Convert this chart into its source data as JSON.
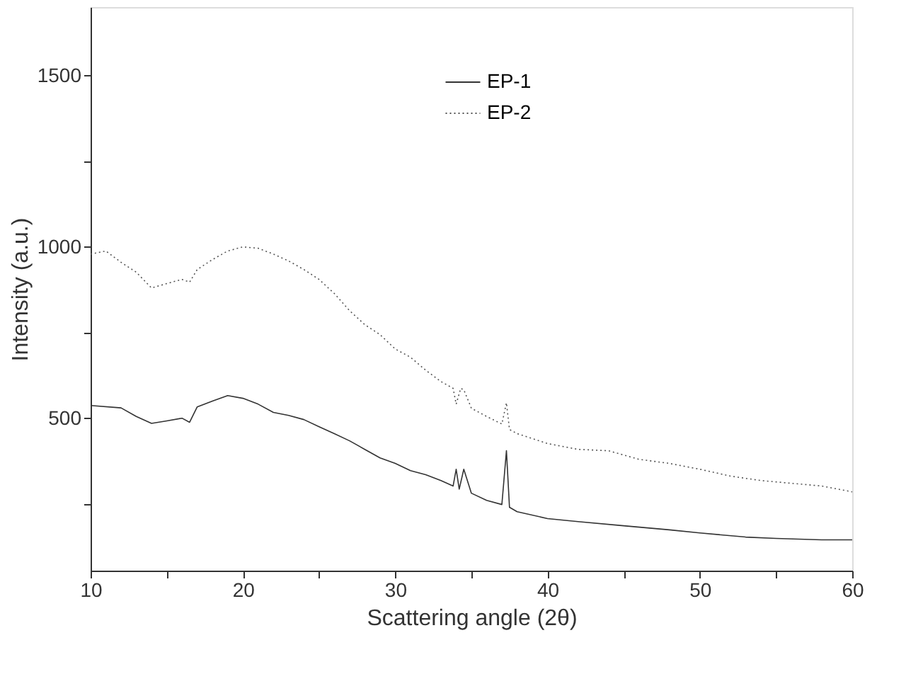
{
  "chart_data": {
    "type": "line",
    "xlabel": "Scattering angle (2θ)",
    "ylabel": "Intensity (a.u.)",
    "xlim": [
      10,
      60
    ],
    "ylim": [
      55,
      1700
    ],
    "xticks": [
      10,
      {
        "value": 15,
        "label": null
      },
      20,
      {
        "value": 25,
        "label": null
      },
      30,
      {
        "value": 35,
        "label": null
      },
      40,
      {
        "value": 45,
        "label": null
      },
      50,
      {
        "value": 55,
        "label": null
      },
      60
    ],
    "yticks": [
      {
        "value": 250,
        "label": null
      },
      500,
      {
        "value": 750,
        "label": null
      },
      1000,
      {
        "value": 1250,
        "label": null
      },
      1500
    ],
    "grid": false,
    "legend": "top",
    "marker": "none",
    "series": [
      {
        "name": "EP-1",
        "color": "#333333",
        "line_style": "solid",
        "x": [
          10,
          12,
          13,
          14,
          15,
          16,
          16.5,
          17,
          18,
          19,
          20,
          21,
          22,
          23,
          24,
          25,
          26,
          27,
          28,
          29,
          30,
          31,
          32,
          33,
          33.8,
          34.0,
          34.2,
          34.5,
          35,
          36,
          37,
          37.3,
          37.5,
          38,
          40,
          42,
          45,
          48,
          50,
          53,
          55,
          58,
          60
        ],
        "values": [
          537,
          530,
          505,
          485,
          492,
          500,
          488,
          533,
          550,
          566,
          558,
          541,
          517,
          508,
          496,
          475,
          455,
          434,
          409,
          384,
          368,
          347,
          335,
          318,
          302,
          351,
          293,
          351,
          281,
          260,
          248,
          405,
          240,
          227,
          207,
          198,
          186,
          174,
          165,
          153,
          149,
          145,
          145
        ]
      },
      {
        "name": "EP-2",
        "color": "#555555",
        "line_style": "dotted",
        "x": [
          10,
          11,
          12,
          13,
          14,
          15,
          16,
          16.5,
          17,
          18,
          19,
          20,
          21,
          22,
          23,
          24,
          25,
          26,
          27,
          28,
          29,
          30,
          31,
          32,
          33,
          33.8,
          34.0,
          34.3,
          34.5,
          35,
          36,
          37,
          37.3,
          37.5,
          38,
          40,
          42,
          44,
          46,
          48,
          50,
          52,
          54,
          56,
          58,
          60
        ],
        "values": [
          979,
          988,
          955,
          926,
          880,
          893,
          905,
          897,
          934,
          963,
          988,
          1000,
          996,
          979,
          959,
          934,
          905,
          864,
          814,
          773,
          744,
          702,
          678,
          640,
          607,
          587,
          541,
          587,
          583,
          529,
          505,
          483,
          545,
          467,
          455,
          426,
          409,
          405,
          380,
          368,
          351,
          331,
          318,
          310,
          302,
          285
        ]
      }
    ]
  }
}
